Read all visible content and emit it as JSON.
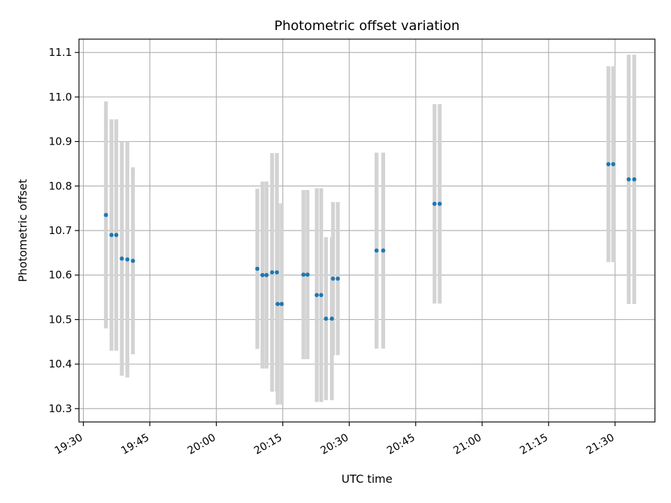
{
  "chart_data": {
    "type": "scatter",
    "title": "Photometric offset variation",
    "xlabel": "UTC time",
    "ylabel": "Photometric offset",
    "grid": true,
    "xlim": [
      "19:29",
      "21:39"
    ],
    "ylim": [
      10.27,
      11.13
    ],
    "x_ticks": [
      "19:30",
      "19:45",
      "20:00",
      "20:15",
      "20:30",
      "20:45",
      "21:00",
      "21:15",
      "21:30"
    ],
    "y_ticks": [
      10.3,
      10.4,
      10.5,
      10.6,
      10.7,
      10.8,
      10.9,
      11.0,
      11.1
    ],
    "colors": {
      "points": "#1f77b4",
      "error_bars": "#d3d3d3",
      "grid": "#b0b0b0"
    },
    "series": [
      {
        "points": [
          {
            "x": "19:35:05",
            "y": 10.735,
            "err": 0.255
          },
          {
            "x": "19:36:20",
            "y": 10.69,
            "err": 0.26
          },
          {
            "x": "19:37:25",
            "y": 10.69,
            "err": 0.26
          },
          {
            "x": "19:38:40",
            "y": 10.637,
            "err": 0.263
          },
          {
            "x": "19:39:55",
            "y": 10.635,
            "err": 0.265
          },
          {
            "x": "19:41:10",
            "y": 10.632,
            "err": 0.21
          },
          {
            "x": "20:09:15",
            "y": 10.614,
            "err": 0.18
          },
          {
            "x": "20:10:25",
            "y": 10.6,
            "err": 0.21
          },
          {
            "x": "20:11:20",
            "y": 10.6,
            "err": 0.21
          },
          {
            "x": "20:12:35",
            "y": 10.606,
            "err": 0.268
          },
          {
            "x": "20:13:40",
            "y": 10.606,
            "err": 0.268
          },
          {
            "x": "20:13:50",
            "y": 10.535,
            "err": 0.226
          },
          {
            "x": "20:14:45",
            "y": 10.535,
            "err": 0.226
          },
          {
            "x": "20:19:40",
            "y": 10.601,
            "err": 0.19
          },
          {
            "x": "20:20:35",
            "y": 10.601,
            "err": 0.19
          },
          {
            "x": "20:22:40",
            "y": 10.555,
            "err": 0.24
          },
          {
            "x": "20:23:40",
            "y": 10.555,
            "err": 0.24
          },
          {
            "x": "20:24:45",
            "y": 10.502,
            "err": 0.183
          },
          {
            "x": "20:26:05",
            "y": 10.502,
            "err": 0.183
          },
          {
            "x": "20:26:20",
            "y": 10.592,
            "err": 0.172
          },
          {
            "x": "20:27:25",
            "y": 10.592,
            "err": 0.172
          },
          {
            "x": "20:36:10",
            "y": 10.655,
            "err": 0.22
          },
          {
            "x": "20:37:40",
            "y": 10.655,
            "err": 0.22
          },
          {
            "x": "20:49:15",
            "y": 10.76,
            "err": 0.224
          },
          {
            "x": "20:50:25",
            "y": 10.76,
            "err": 0.224
          },
          {
            "x": "21:28:30",
            "y": 10.849,
            "err": 0.22
          },
          {
            "x": "21:29:35",
            "y": 10.849,
            "err": 0.22
          },
          {
            "x": "21:33:05",
            "y": 10.815,
            "err": 0.28
          },
          {
            "x": "21:34:20",
            "y": 10.815,
            "err": 0.28
          }
        ]
      }
    ]
  }
}
